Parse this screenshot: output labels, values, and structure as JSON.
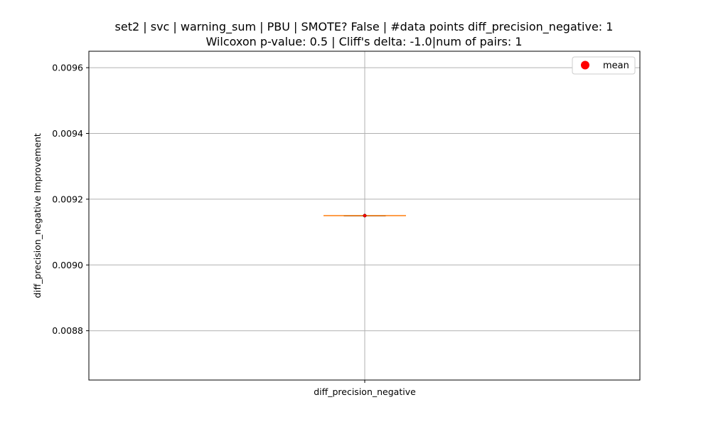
{
  "chart_data": {
    "type": "box",
    "title_lines": [
      "set2 | svc | warning_sum | PBU | SMOTE? False | #data points diff_precision_negative: 1",
      "Wilcoxon p-value: 0.5 | Cliff's delta: -1.0|num of pairs: 1"
    ],
    "xlabel": "",
    "ylabel": "diff_precision_negative Improvement",
    "categories": [
      "diff_precision_negative"
    ],
    "ylim": [
      0.00865,
      0.00965
    ],
    "yticks": [
      0.0088,
      0.009,
      0.0092,
      0.0094,
      0.0096
    ],
    "ytick_labels": [
      "0.0088",
      "0.0090",
      "0.0092",
      "0.0094",
      "0.0096"
    ],
    "boxes": [
      {
        "category": "diff_precision_negative",
        "min": 0.00915,
        "q1": 0.00915,
        "median": 0.00915,
        "q3": 0.00915,
        "max": 0.00915,
        "mean": 0.00915
      }
    ],
    "legend": {
      "position": "top-right",
      "entries": [
        {
          "label": "mean",
          "color": "#ff0000",
          "marker": "circle"
        }
      ]
    },
    "grid": true,
    "colors": {
      "median": "#ff7f0e",
      "box": "#000000",
      "mean": "#ff0000",
      "grid": "#b0b0b0"
    }
  }
}
